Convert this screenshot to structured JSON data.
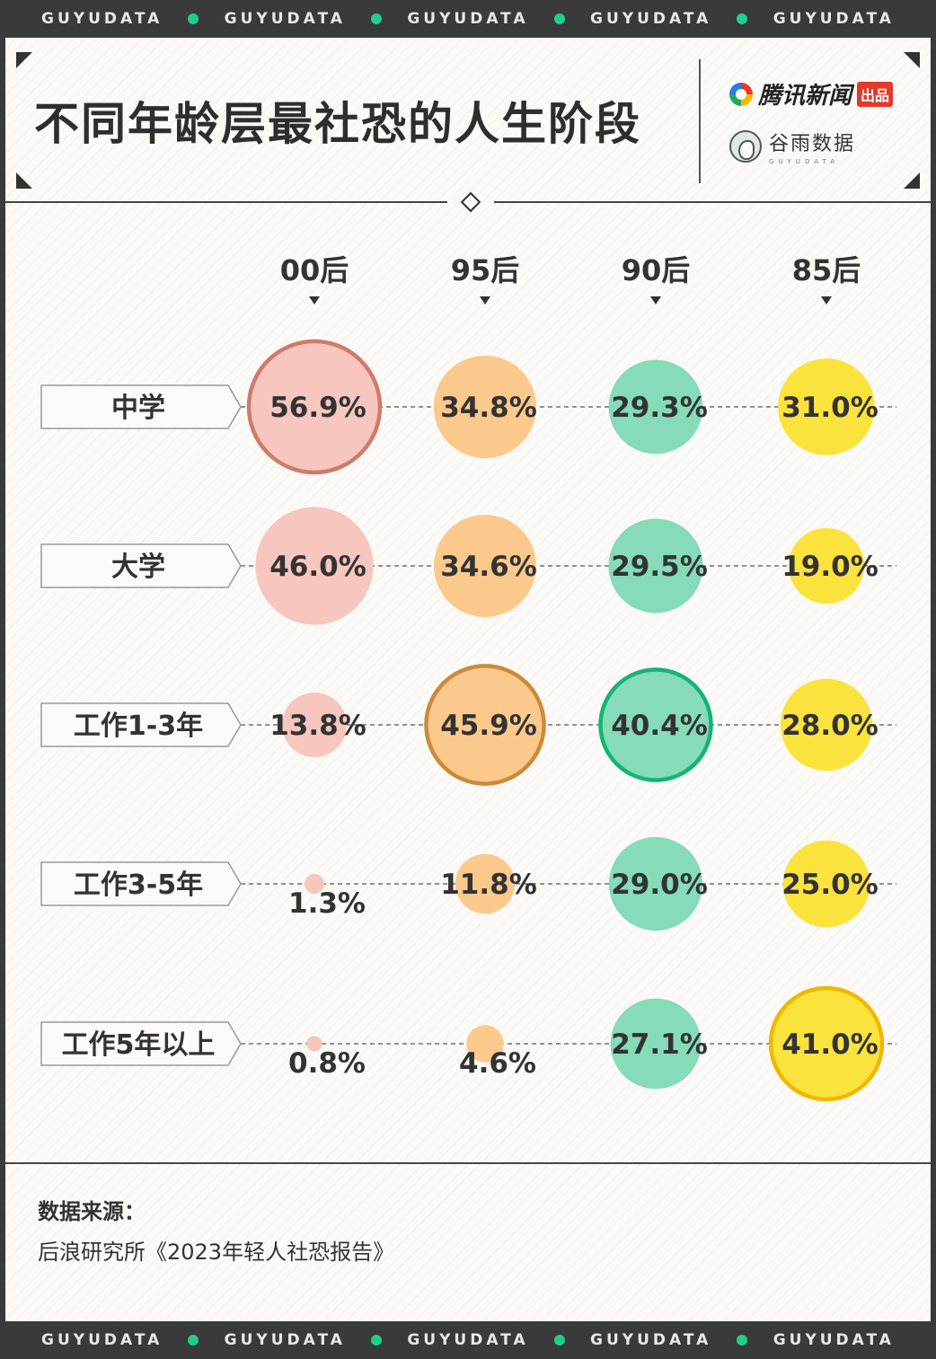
{
  "band": {
    "word": "GUYUDATA",
    "accent": "#1fce8a"
  },
  "title": "不同年龄层最社恐的人生阶段",
  "brand": {
    "tencent_name": "腾讯新闻",
    "tencent_tag": "出品",
    "guyu_name": "谷雨数据",
    "guyu_sub": "GUYUDATA"
  },
  "source": {
    "label": "数据来源：",
    "text": "后浪研究所《2023年轻人社恐报告》"
  },
  "chart_data": {
    "type": "bubble-matrix",
    "columns": [
      "00后",
      "95后",
      "90后",
      "85后"
    ],
    "rows": [
      "中学",
      "大学",
      "工作1-3年",
      "工作3-5年",
      "工作5年以上"
    ],
    "unit": "%",
    "series": [
      {
        "name": "00后",
        "values": [
          56.9,
          46.0,
          13.8,
          1.3,
          0.8
        ],
        "labels": [
          "56.9%",
          "46.0%",
          "13.8%",
          "1.3%",
          "0.8%"
        ],
        "color": "#f6c6bf",
        "highlight_color": "#cf7b6c"
      },
      {
        "name": "95后",
        "values": [
          34.8,
          34.6,
          45.9,
          11.8,
          4.6
        ],
        "labels": [
          "34.8%",
          "34.6%",
          "45.9%",
          "11.8%",
          "4.6%"
        ],
        "color": "#fcc98c",
        "highlight_color": "#cc8a3a"
      },
      {
        "name": "90后",
        "values": [
          29.3,
          29.5,
          40.4,
          29.0,
          27.1
        ],
        "labels": [
          "29.3%",
          "29.5%",
          "40.4%",
          "29.0%",
          "27.1%"
        ],
        "color": "#86dbb8",
        "highlight_color": "#12b477"
      },
      {
        "name": "85后",
        "values": [
          31.0,
          19.0,
          28.0,
          25.0,
          41.0
        ],
        "labels": [
          "31.0%",
          "19.0%",
          "28.0%",
          "25.0%",
          "41.0%"
        ],
        "color": "#fbe33e",
        "highlight_color": "#f0b800"
      }
    ],
    "highlight": [
      "00后|中学",
      "95后|工作1-3年",
      "90后|工作1-3年",
      "85后|工作5年以上"
    ]
  }
}
